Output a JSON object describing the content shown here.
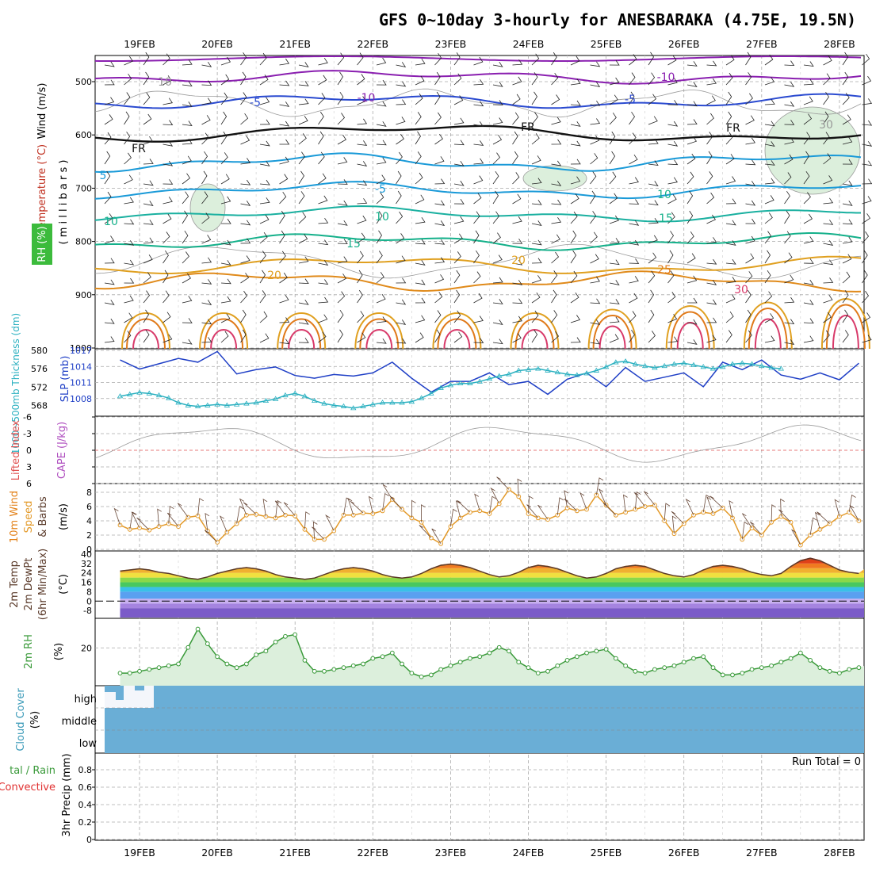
{
  "title": "GFS 0~10day 3-hourly for ANESBARAKA (4.75E, 19.5N)",
  "dates": [
    "19FEB",
    "20FEB",
    "21FEB",
    "22FEB",
    "23FEB",
    "24FEB",
    "25FEB",
    "26FEB",
    "27FEB",
    "28FEB"
  ],
  "colors": {
    "grid": "#aaaaaa",
    "slp": "#1f3fc6",
    "thickness": "#2ab0c0",
    "wind10": "#e39a2a",
    "temp2m": "#5a3a2a",
    "rh2m": "#3a9a3a",
    "rh_fill": "#dcefdc",
    "cloud": "#6aaed6",
    "lifted_zero": "#e05050"
  },
  "panels": {
    "upper_air": {
      "ylabel_wind": "Wind (m/s)",
      "ylabel_temp": "Temperature (°C)",
      "ylabel_rh": "RH (%)",
      "ylabel_axis": "( m i l l i b a r s )",
      "ticks": [
        "500",
        "600",
        "700",
        "800",
        "900",
        "1000"
      ],
      "labels": [
        "-10",
        "-10",
        "-5",
        "-5",
        "FR",
        "FR",
        "FR",
        "-5",
        "5",
        "10",
        "10",
        "15",
        "15",
        "20",
        "20",
        "25",
        "30",
        "10",
        "10",
        "30"
      ]
    },
    "slp_thickness": {
      "ylabel_thickness": "1000~500mb Thickness (dm)",
      "ylabel_slp": "SLP (mb)",
      "thickness_ticks": [
        "580",
        "576",
        "572",
        "568"
      ],
      "slp_ticks": [
        "1017",
        "1014",
        "1011",
        "1008"
      ]
    },
    "lifted_index": {
      "ylabel_li": "Lifted Index",
      "ylabel_cape": "CAPE (J/kg)",
      "ticks": [
        "-6",
        "-3",
        "0",
        "3",
        "6"
      ]
    },
    "wind10m": {
      "ylabel": "10m Wind",
      "ylabel2": "Speed",
      "ylabel3": "& Barbs",
      "unit": "(m/s)",
      "ticks": [
        "8",
        "6",
        "4",
        "2",
        "0"
      ]
    },
    "temp2m": {
      "ylabel": "2m Temp",
      "ylabel2": "2m DewPt",
      "ylabel3": "(6hr Min/Max)",
      "unit": "(°C)",
      "ticks": [
        "40",
        "32",
        "24",
        "16",
        "8",
        "0",
        "-8"
      ]
    },
    "rh2m": {
      "ylabel": "2m RH",
      "unit": "(%)",
      "ticks": [
        "20"
      ]
    },
    "cloud": {
      "ylabel": "Cloud Cover",
      "unit": "(%)",
      "levels": [
        "high",
        "middle",
        "low"
      ]
    },
    "precip": {
      "ylabel": "3hr Precip (mm)",
      "legend_total": "tal / Rain",
      "legend_conv": "Convective",
      "run_total": "Run Total = 0",
      "ticks": [
        "0.8",
        "0.6",
        "0.4",
        "0.2",
        "0"
      ]
    }
  },
  "chart_data": [
    {
      "type": "line",
      "name": "SLP",
      "x_start": "18FEB 18Z",
      "x_step_hours": 6,
      "ylim": [
        1005,
        1017
      ],
      "values": [
        1015.2,
        1013.5,
        1014.5,
        1015.5,
        1014.8,
        1016.8,
        1012.6,
        1013.4,
        1013.9,
        1012.3,
        1011.8,
        1012.5,
        1012.2,
        1012.8,
        1014.8,
        1011.8,
        1009.2,
        1011.2,
        1011.2,
        1012.8,
        1010.6,
        1011.2,
        1008.8,
        1011.6,
        1012.8,
        1010.2,
        1013.8,
        1011.2,
        1012.0,
        1012.8,
        1010.2,
        1014.8,
        1013.4,
        1015.2,
        1012.4,
        1011.6,
        1012.8,
        1011.5,
        1014.6,
        1012.4,
        1011.0,
        1015.8,
        1011.4,
        1012.6,
        1013.4,
        1010.0,
        1012.0,
        1011.2,
        1010.2,
        1014.0,
        1011.3,
        1009.2,
        1011.2,
        1013.0,
        1010.6,
        1010.2,
        1011.0,
        1012.8,
        1008.6,
        1012.0,
        1011.0,
        1009.4,
        1012.0,
        1008.6,
        1006.2,
        1008.0,
        1010.8,
        1008.6,
        1009.6,
        1011.4,
        1010.2,
        1012.2,
        1012.8,
        1011.5,
        1009.4,
        1010.5,
        1011.8,
        1011.0,
        1008.5
      ]
    },
    {
      "type": "line",
      "name": "Thickness",
      "x_start": "18FEB 18Z",
      "x_step_hours": 3,
      "ylim": [
        566,
        580
      ],
      "values": [
        570.0,
        570.4,
        570.8,
        570.6,
        570.2,
        569.6,
        568.6,
        568.0,
        567.8,
        568.0,
        568.2,
        568.0,
        568.2,
        568.4,
        568.6,
        569.0,
        569.4,
        570.2,
        570.6,
        570.0,
        569.0,
        568.4,
        568.0,
        567.8,
        567.4,
        567.8,
        568.2,
        568.6,
        568.6,
        568.6,
        568.8,
        569.6,
        570.6,
        571.8,
        572.4,
        572.8,
        572.8,
        573.2,
        573.8,
        574.4,
        574.8,
        575.6,
        575.8,
        576.0,
        575.6,
        575.2,
        574.8,
        574.6,
        575.0,
        575.6,
        576.4,
        577.4,
        577.6,
        577.0,
        576.6,
        576.2,
        576.6,
        577.0,
        577.2,
        576.8,
        576.4,
        576.0,
        576.4,
        577.0,
        577.2,
        577.0,
        576.6,
        576.2,
        576.0
      ]
    },
    {
      "type": "line",
      "name": "10m Wind Speed",
      "x_start": "18FEB 18Z",
      "x_step_hours": 3,
      "ylim": [
        0,
        9
      ],
      "values": [
        3.4,
        2.8,
        3.0,
        2.7,
        3.2,
        3.6,
        3.2,
        4.5,
        4.7,
        2.6,
        1.0,
        2.4,
        3.6,
        4.8,
        4.9,
        4.6,
        4.4,
        4.8,
        4.7,
        2.8,
        1.4,
        1.4,
        2.6,
        4.8,
        4.8,
        5.1,
        5.0,
        5.4,
        7.0,
        5.6,
        4.4,
        3.8,
        1.6,
        0.8,
        3.2,
        4.4,
        5.2,
        5.4,
        5.0,
        6.4,
        8.4,
        7.4,
        5.0,
        4.4,
        4.2,
        4.8,
        5.8,
        5.4,
        5.6,
        7.6,
        6.2,
        4.8,
        5.2,
        5.6,
        6.0,
        6.2,
        4.0,
        2.2,
        3.6,
        4.8,
        5.2,
        5.0,
        5.8,
        4.4,
        1.4,
        3.0,
        2.0,
        3.8,
        4.6,
        3.8,
        0.6,
        2.0,
        2.8,
        3.6,
        4.6,
        5.2,
        4.0,
        3.4,
        3.0,
        4.2,
        5.0,
        4.8,
        3.2,
        3.6,
        2.4,
        3.0,
        3.6,
        4.4,
        4.6,
        5.0,
        5.4,
        5.2,
        4.8,
        5.0,
        5.4,
        5.0
      ]
    },
    {
      "type": "area",
      "name": "2m Temp",
      "x_start": "18FEB 18Z",
      "x_step_hours": 3,
      "ylim": [
        -14,
        42
      ],
      "values": [
        26,
        27,
        28,
        27,
        25,
        24,
        22,
        20,
        19,
        21,
        24,
        26,
        28,
        29,
        28,
        26,
        23,
        21,
        20,
        19,
        20,
        23,
        26,
        28,
        29,
        28,
        26,
        23,
        21,
        20,
        21,
        24,
        28,
        31,
        32,
        31,
        29,
        26,
        23,
        21,
        22,
        25,
        29,
        31,
        30,
        28,
        25,
        22,
        20,
        21,
        24,
        28,
        30,
        31,
        30,
        27,
        24,
        22,
        21,
        23,
        27,
        30,
        31,
        30,
        28,
        25,
        23,
        22,
        24,
        30,
        35,
        37,
        35,
        31,
        27,
        25,
        24,
        27,
        33,
        38,
        38,
        35,
        30,
        27,
        25,
        26,
        32,
        36,
        37,
        34,
        30,
        27,
        25,
        26,
        32,
        37,
        39,
        36,
        31,
        27,
        25
      ]
    },
    {
      "type": "area",
      "name": "2m RH",
      "x_start": "18FEB 18Z",
      "x_step_hours": 3,
      "ylim": [
        0,
        35
      ],
      "values": [
        6,
        6,
        7,
        8,
        9,
        10,
        11,
        20,
        30,
        22,
        15,
        11,
        9,
        11,
        16,
        18,
        23,
        26,
        27,
        13,
        7,
        7,
        8,
        9,
        10,
        11,
        14,
        15,
        17,
        11,
        6,
        4,
        5,
        8,
        10,
        12,
        14,
        15,
        17,
        20,
        18,
        12,
        9,
        6,
        7,
        10,
        13,
        15,
        17,
        18,
        19,
        14,
        10,
        7,
        6,
        8,
        9,
        10,
        12,
        14,
        15,
        9,
        5,
        5,
        6,
        8,
        9,
        10,
        12,
        14,
        17,
        13,
        9,
        7,
        6,
        8,
        9,
        10,
        12,
        15,
        18,
        11,
        6,
        5,
        5,
        6,
        6,
        7,
        8,
        9,
        10,
        11,
        14,
        9,
        6,
        5,
        5,
        6,
        7,
        7,
        8,
        6
      ]
    },
    {
      "type": "line",
      "name": "3hr Precip",
      "ylim": [
        0,
        1
      ],
      "values": [
        0,
        0,
        0,
        0,
        0,
        0,
        0,
        0,
        0,
        0
      ]
    }
  ]
}
